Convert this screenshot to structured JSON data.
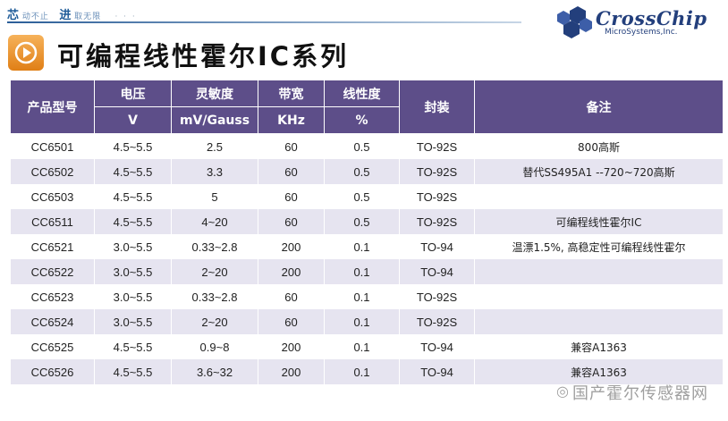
{
  "header": {
    "slogan_part1": "芯",
    "slogan_part2": "动不止",
    "slogan_part3": "进",
    "slogan_part4": "取无限",
    "slogan_dots": "· · ·"
  },
  "logo": {
    "name": "CrossChip",
    "subtitle": "MicroSystems,Inc."
  },
  "title": "可编程线性霍尔IC系列",
  "table": {
    "headers": {
      "model": "产品型号",
      "voltage": "电压",
      "voltage_unit": "V",
      "sensitivity": "灵敏度",
      "sensitivity_unit": "mV/Gauss",
      "bandwidth": "带宽",
      "bandwidth_unit": "KHz",
      "linearity": "线性度",
      "linearity_unit": "%",
      "package": "封装",
      "notes": "备注"
    },
    "rows": [
      [
        "CC6501",
        "4.5~5.5",
        "2.5",
        "60",
        "0.5",
        "TO-92S",
        "800高斯"
      ],
      [
        "CC6502",
        "4.5~5.5",
        "3.3",
        "60",
        "0.5",
        "TO-92S",
        "替代SS495A1 --720~720高斯"
      ],
      [
        "CC6503",
        "4.5~5.5",
        "5",
        "60",
        "0.5",
        "TO-92S",
        ""
      ],
      [
        "CC6511",
        "4.5~5.5",
        "4~20",
        "60",
        "0.5",
        "TO-92S",
        "可编程线性霍尔IC"
      ],
      [
        "CC6521",
        "3.0~5.5",
        "0.33~2.8",
        "200",
        "0.1",
        "TO-94",
        "温漂1.5%, 高稳定性可编程线性霍尔"
      ],
      [
        "CC6522",
        "3.0~5.5",
        "2~20",
        "200",
        "0.1",
        "TO-94",
        ""
      ],
      [
        "CC6523",
        "3.0~5.5",
        "0.33~2.8",
        "60",
        "0.1",
        "TO-92S",
        ""
      ],
      [
        "CC6524",
        "3.0~5.5",
        "2~20",
        "60",
        "0.1",
        "TO-92S",
        ""
      ],
      [
        "CC6525",
        "4.5~5.5",
        "0.9~8",
        "200",
        "0.1",
        "TO-94",
        "兼容A1363"
      ],
      [
        "CC6526",
        "4.5~5.5",
        "3.6~32",
        "200",
        "0.1",
        "TO-94",
        "兼容A1363"
      ]
    ]
  },
  "watermark": "国产霍尔传感器网",
  "colors": {
    "header_bg": "#5d4e89",
    "row_alt": "#e6e4f0",
    "accent_orange": "#e8891f",
    "logo_blue": "#233f7c"
  }
}
